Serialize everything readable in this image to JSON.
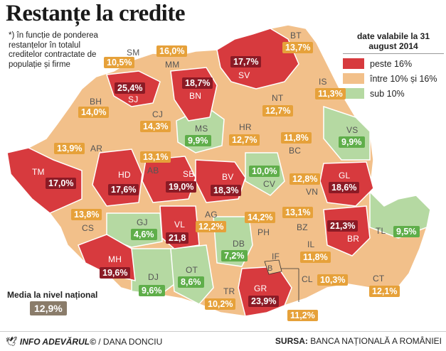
{
  "title": "Restanțe la credite",
  "note": "*) în funcție de ponderea restanțelor în totalul creditelor contractate de populație și firme",
  "legend": {
    "title": "date valabile la 31 august 2014",
    "items": [
      {
        "label": "peste 16%",
        "color": "#d73a3e"
      },
      {
        "label": "între 10% și 16%",
        "color": "#f2c08a"
      },
      {
        "label": "sub 10%",
        "color": "#b5d9a2"
      }
    ]
  },
  "counties": [
    {
      "code": "SM",
      "value": "10,5%",
      "category": "mid"
    },
    {
      "code": "MM",
      "value": "16,0%",
      "category": "mid"
    },
    {
      "code": "BT",
      "value": "13,7%",
      "category": "mid"
    },
    {
      "code": "SV",
      "value": "17,7%",
      "category": "high"
    },
    {
      "code": "SJ",
      "value": "25,4%",
      "category": "high"
    },
    {
      "code": "BN",
      "value": "18,7%",
      "category": "high"
    },
    {
      "code": "IS",
      "value": "11,3%",
      "category": "mid"
    },
    {
      "code": "BH",
      "value": "14,0%",
      "category": "mid"
    },
    {
      "code": "CJ",
      "value": "14,3%",
      "category": "mid"
    },
    {
      "code": "NT",
      "value": "12,7%",
      "category": "mid"
    },
    {
      "code": "MS",
      "value": "9,9%",
      "category": "low"
    },
    {
      "code": "HR",
      "value": "12,7%",
      "category": "mid"
    },
    {
      "code": "BC",
      "value": "11,8%",
      "category": "mid"
    },
    {
      "code": "VS",
      "value": "9,9%",
      "category": "low"
    },
    {
      "code": "AR",
      "value": "13,9%",
      "category": "mid"
    },
    {
      "code": "AB",
      "value": "13,1%",
      "category": "mid"
    },
    {
      "code": "TM",
      "value": "17,0%",
      "category": "high"
    },
    {
      "code": "HD",
      "value": "17,6%",
      "category": "high"
    },
    {
      "code": "SB",
      "value": "19,0%",
      "category": "high"
    },
    {
      "code": "BV",
      "value": "18,3%",
      "category": "high"
    },
    {
      "code": "CV",
      "value": "10,0%",
      "category": "low"
    },
    {
      "code": "VN",
      "value": "12,8%",
      "category": "mid"
    },
    {
      "code": "GL",
      "value": "18,6%",
      "category": "high"
    },
    {
      "code": "CS",
      "value": "13,8%",
      "category": "mid"
    },
    {
      "code": "GJ",
      "value": "4,6%",
      "category": "low"
    },
    {
      "code": "VL",
      "value": "21,8",
      "category": "high"
    },
    {
      "code": "AG",
      "value": "12,2%",
      "category": "mid"
    },
    {
      "code": "PH",
      "value": "14,2%",
      "category": "mid"
    },
    {
      "code": "BZ",
      "value": "13,1%",
      "category": "mid"
    },
    {
      "code": "BR",
      "value": "21,3%",
      "category": "high"
    },
    {
      "code": "TL",
      "value": "9,5%",
      "category": "low"
    },
    {
      "code": "MH",
      "value": "19,6%",
      "category": "high"
    },
    {
      "code": "DJ",
      "value": "9,6%",
      "category": "low"
    },
    {
      "code": "OT",
      "value": "8,6%",
      "category": "low"
    },
    {
      "code": "DB",
      "value": "7,2%",
      "category": "low"
    },
    {
      "code": "IF",
      "value": "",
      "category": "mid"
    },
    {
      "code": "B",
      "value": "11,2%",
      "category": "mid"
    },
    {
      "code": "IL",
      "value": "11,8%",
      "category": "mid"
    },
    {
      "code": "CL",
      "value": "10,3%",
      "category": "mid"
    },
    {
      "code": "CT",
      "value": "12,1%",
      "category": "mid"
    },
    {
      "code": "TR",
      "value": "10,2%",
      "category": "mid"
    },
    {
      "code": "GR",
      "value": "23,9%",
      "category": "high"
    }
  ],
  "national": {
    "label": "Media la nivel național",
    "value": "12,9%"
  },
  "footer": {
    "credit_brand": "INFO ADEVĂRUL©",
    "credit_author": " / DANA DONCIU",
    "source_label": "SURSA:",
    "source_value": " BANCA NAȚIONALĂ A ROMÂNIEI"
  },
  "colors": {
    "high": "#d73a3e",
    "mid": "#f2c08a",
    "low": "#b5d9a2",
    "val_high": "#8b1a25",
    "val_mid": "#e6a13a",
    "val_low": "#5fae4a"
  }
}
